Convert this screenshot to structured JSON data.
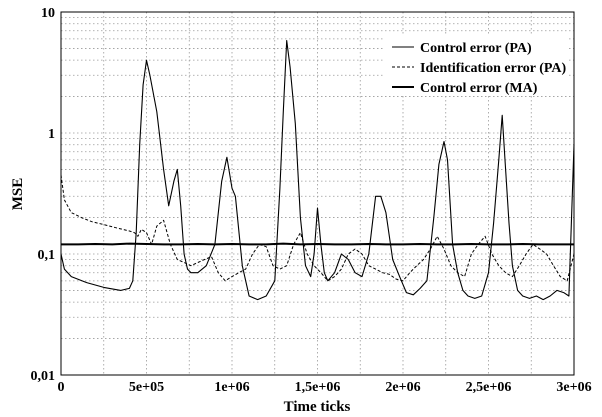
{
  "chart_data": {
    "type": "line",
    "title": "",
    "xlabel": "Time ticks",
    "ylabel": "MSE",
    "xlim": [
      0,
      3000000
    ],
    "ylim": [
      0.01,
      10
    ],
    "y_scale": "log",
    "grid": true,
    "legend_position": "top-right",
    "x_ticks": [
      {
        "value": 0,
        "label": "0"
      },
      {
        "value": 500000,
        "label": "5e+05"
      },
      {
        "value": 1000000,
        "label": "1e+06"
      },
      {
        "value": 1500000,
        "label": "1,5e+06"
      },
      {
        "value": 2000000,
        "label": "2e+06"
      },
      {
        "value": 2500000,
        "label": "2,5e+06"
      },
      {
        "value": 3000000,
        "label": "3e+06"
      }
    ],
    "y_ticks": [
      {
        "value": 0.01,
        "label": "0,01"
      },
      {
        "value": 0.1,
        "label": "0,1"
      },
      {
        "value": 1,
        "label": "1"
      },
      {
        "value": 10,
        "label": "10"
      }
    ],
    "series": [
      {
        "name": "Control error (PA)",
        "style": "solid-thin",
        "x": [
          0,
          20000,
          60000,
          150000,
          250000,
          350000,
          400000,
          420000,
          440000,
          460000,
          480000,
          500000,
          520000,
          560000,
          600000,
          630000,
          660000,
          680000,
          700000,
          720000,
          740000,
          760000,
          800000,
          850000,
          900000,
          940000,
          970000,
          1000000,
          1020000,
          1060000,
          1100000,
          1150000,
          1200000,
          1250000,
          1280000,
          1300000,
          1320000,
          1340000,
          1370000,
          1400000,
          1430000,
          1460000,
          1480000,
          1500000,
          1520000,
          1540000,
          1560000,
          1600000,
          1640000,
          1680000,
          1720000,
          1760000,
          1800000,
          1840000,
          1870000,
          1900000,
          1940000,
          1980000,
          2020000,
          2060000,
          2100000,
          2140000,
          2180000,
          2210000,
          2240000,
          2260000,
          2290000,
          2320000,
          2350000,
          2380000,
          2420000,
          2460000,
          2500000,
          2530000,
          2560000,
          2580000,
          2600000,
          2620000,
          2640000,
          2670000,
          2700000,
          2740000,
          2780000,
          2820000,
          2860000,
          2900000,
          2940000,
          2970000,
          3000000
        ],
        "values": [
          0.1,
          0.075,
          0.065,
          0.058,
          0.053,
          0.05,
          0.052,
          0.06,
          0.15,
          0.8,
          2.5,
          4.0,
          3.0,
          1.5,
          0.5,
          0.25,
          0.4,
          0.5,
          0.25,
          0.1,
          0.075,
          0.07,
          0.07,
          0.08,
          0.12,
          0.4,
          0.63,
          0.35,
          0.3,
          0.08,
          0.045,
          0.042,
          0.045,
          0.06,
          0.35,
          1.5,
          5.8,
          3.5,
          1.2,
          0.2,
          0.08,
          0.065,
          0.1,
          0.24,
          0.12,
          0.07,
          0.06,
          0.07,
          0.1,
          0.09,
          0.07,
          0.065,
          0.1,
          0.3,
          0.3,
          0.22,
          0.09,
          0.065,
          0.048,
          0.046,
          0.052,
          0.06,
          0.2,
          0.55,
          0.85,
          0.6,
          0.12,
          0.07,
          0.05,
          0.045,
          0.043,
          0.045,
          0.07,
          0.18,
          0.6,
          1.4,
          0.5,
          0.18,
          0.08,
          0.05,
          0.045,
          0.043,
          0.045,
          0.042,
          0.045,
          0.05,
          0.048,
          0.045,
          0.8
        ]
      },
      {
        "name": "Identification error (PA)",
        "style": "dashed",
        "x": [
          0,
          20000,
          60000,
          120000,
          180000,
          250000,
          320000,
          360000,
          400000,
          430000,
          450000,
          470000,
          500000,
          530000,
          560000,
          600000,
          640000,
          680000,
          720000,
          760000,
          800000,
          840000,
          880000,
          920000,
          960000,
          1000000,
          1040000,
          1080000,
          1120000,
          1160000,
          1200000,
          1240000,
          1280000,
          1320000,
          1360000,
          1400000,
          1440000,
          1480000,
          1520000,
          1560000,
          1600000,
          1640000,
          1680000,
          1720000,
          1760000,
          1800000,
          1840000,
          1880000,
          1920000,
          1960000,
          2000000,
          2040000,
          2080000,
          2120000,
          2160000,
          2200000,
          2240000,
          2280000,
          2320000,
          2360000,
          2400000,
          2440000,
          2480000,
          2520000,
          2560000,
          2600000,
          2640000,
          2680000,
          2720000,
          2760000,
          2800000,
          2840000,
          2880000,
          2920000,
          2960000,
          3000000
        ],
        "values": [
          0.45,
          0.28,
          0.22,
          0.2,
          0.185,
          0.175,
          0.165,
          0.16,
          0.155,
          0.15,
          0.14,
          0.16,
          0.15,
          0.12,
          0.17,
          0.19,
          0.12,
          0.09,
          0.085,
          0.08,
          0.085,
          0.09,
          0.095,
          0.07,
          0.06,
          0.065,
          0.07,
          0.075,
          0.1,
          0.12,
          0.115,
          0.08,
          0.075,
          0.08,
          0.12,
          0.15,
          0.1,
          0.08,
          0.07,
          0.06,
          0.065,
          0.075,
          0.1,
          0.11,
          0.1,
          0.08,
          0.075,
          0.07,
          0.068,
          0.062,
          0.06,
          0.07,
          0.08,
          0.09,
          0.11,
          0.14,
          0.11,
          0.08,
          0.07,
          0.065,
          0.1,
          0.12,
          0.14,
          0.1,
          0.08,
          0.07,
          0.065,
          0.08,
          0.1,
          0.12,
          0.11,
          0.1,
          0.08,
          0.065,
          0.06,
          0.1
        ]
      },
      {
        "name": "Control error (MA)",
        "style": "solid-thick",
        "x": [
          0,
          100000,
          200000,
          300000,
          400000,
          500000,
          600000,
          700000,
          800000,
          900000,
          1000000,
          1100000,
          1200000,
          1300000,
          1400000,
          1500000,
          1600000,
          1700000,
          1800000,
          1900000,
          2000000,
          2100000,
          2200000,
          2300000,
          2400000,
          2500000,
          2600000,
          2700000,
          2800000,
          2900000,
          3000000
        ],
        "values": [
          0.12,
          0.12,
          0.121,
          0.12,
          0.122,
          0.121,
          0.12,
          0.12,
          0.121,
          0.12,
          0.121,
          0.12,
          0.12,
          0.122,
          0.12,
          0.121,
          0.12,
          0.12,
          0.121,
          0.12,
          0.12,
          0.121,
          0.12,
          0.12,
          0.121,
          0.12,
          0.12,
          0.121,
          0.12,
          0.12,
          0.12
        ]
      }
    ]
  }
}
